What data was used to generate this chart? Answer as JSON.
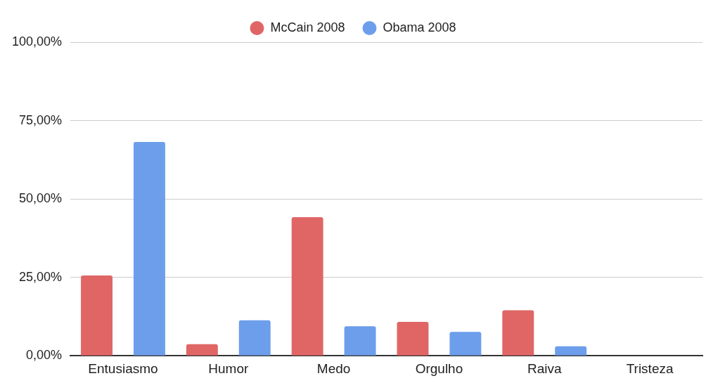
{
  "chart_data": {
    "type": "bar",
    "categories": [
      "Entusiasmo",
      "Humor",
      "Medo",
      "Orgulho",
      "Raiva",
      "Tristeza"
    ],
    "series": [
      {
        "name": "McCain 2008",
        "color": "#e06666",
        "values": [
          25.6,
          3.7,
          44.2,
          10.8,
          14.5,
          0
        ]
      },
      {
        "name": "Obama 2008",
        "color": "#6d9eeb",
        "values": [
          68.2,
          11.3,
          9.4,
          7.6,
          3.0,
          0
        ]
      }
    ],
    "ylim": [
      0,
      100
    ],
    "yticks": [
      {
        "value": 0,
        "label": "0,00%"
      },
      {
        "value": 25,
        "label": "25,00%"
      },
      {
        "value": 50,
        "label": "50,00%"
      },
      {
        "value": 75,
        "label": "75,00%"
      },
      {
        "value": 100,
        "label": "100,00%"
      }
    ],
    "grid": "y",
    "legend": "top"
  }
}
